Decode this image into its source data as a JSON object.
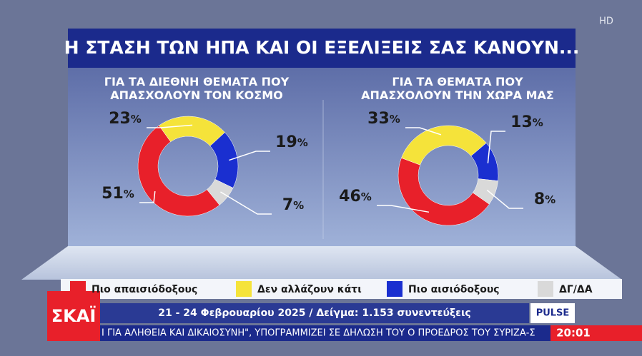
{
  "header": {
    "title": "Η ΣΤΑΣΗ ΤΩΝ ΗΠΑ ΚΑΙ ΟΙ ΕΞΕΛΙΞΕΙΣ ΣΑΣ ΚΑΝΟΥΝ...",
    "hd": "HD"
  },
  "chart_data": [
    {
      "type": "pie",
      "title": "ΓΙΑ ΤΑ ΔΙΕΘΝΗ ΘΕΜΑΤΑ ΠΟΥ ΑΠΑΣΧΟΛΟΥΝ ΤΟΝ ΚΟΣΜΟ",
      "categories": [
        "Πιο απαισιόδοξους",
        "Δεν αλλάζουν κάτι",
        "Πιο αισιόδοξους",
        "ΔΓ/ΔΑ"
      ],
      "values": [
        51,
        23,
        19,
        7
      ],
      "value_labels": [
        "51%",
        "23%",
        "19%",
        "7%"
      ],
      "colors": [
        "#e8202a",
        "#f5e33a",
        "#1a2fd0",
        "#d9d9d9"
      ]
    },
    {
      "type": "pie",
      "title": "ΓΙΑ ΤΑ ΘΕΜΑΤΑ ΠΟΥ ΑΠΑΣΧΟΛΟΥΝ ΤΗΝ ΧΩΡΑ ΜΑΣ",
      "categories": [
        "Πιο απαισιόδοξους",
        "Δεν αλλάζουν κάτι",
        "Πιο αισιόδοξους",
        "ΔΓ/ΔΑ"
      ],
      "values": [
        46,
        33,
        13,
        8
      ],
      "value_labels": [
        "46%",
        "33%",
        "13%",
        "8%"
      ],
      "colors": [
        "#e8202a",
        "#f5e33a",
        "#1a2fd0",
        "#d9d9d9"
      ]
    }
  ],
  "footer": {
    "survey_info": "21 - 24 Φεβρουαρίου 2025 / Δείγμα: 1.153 συνεντεύξεις",
    "pollster": "PULSE",
    "channel": "ΣΚΑΪ",
    "ticker": "Ι ΓΙΑ ΑΛΗΘΕΙΑ ΚΑΙ ΔΙΚΑΙΟΣΥΝΗ\", ΥΠΟΓΡΑΜΜΙΖΕΙ ΣΕ ΔΗΛΩΣΗ ΤΟΥ Ο ΠΡΟΕΔΡΟΣ ΤΟΥ ΣΥΡΙΖΑ-Σ",
    "clock": "20:01"
  }
}
